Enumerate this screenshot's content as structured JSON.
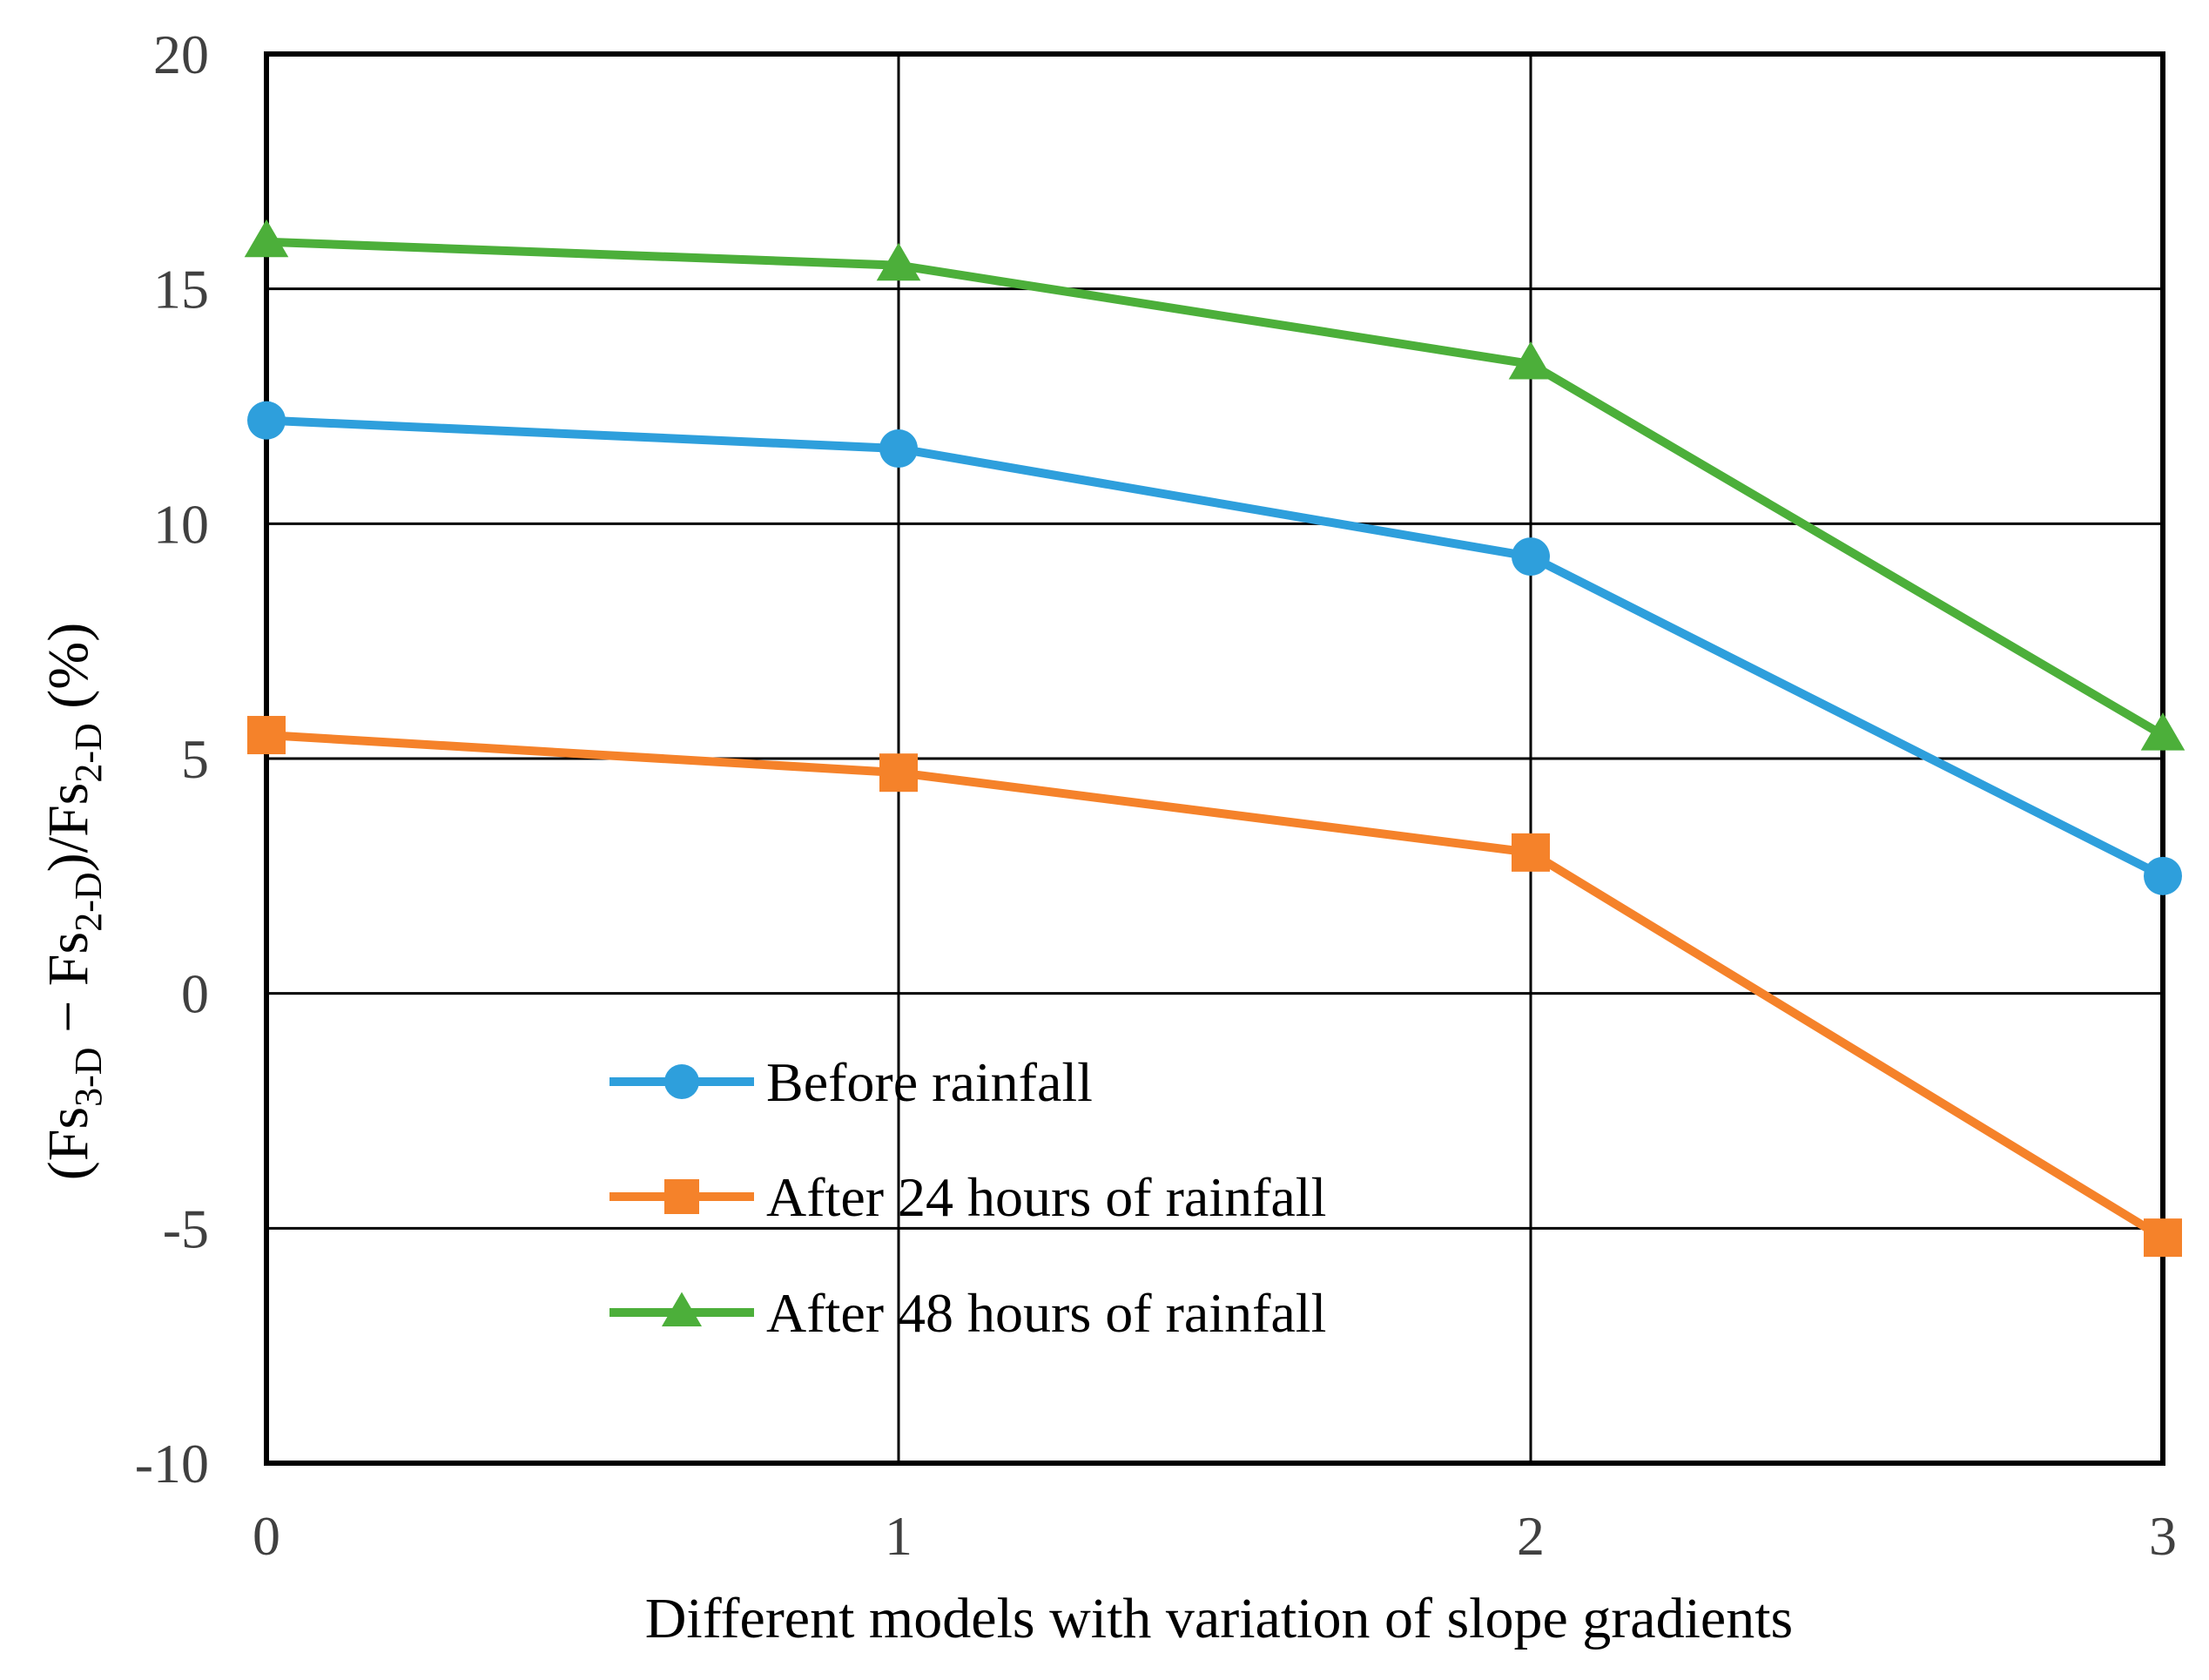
{
  "chart_data": {
    "type": "line",
    "title": "",
    "xlabel": "Different models with variation of slope gradients",
    "ylabel": {
      "main": "(Fs",
      "sub1": "3-D",
      "mid": " − Fs",
      "sub2": "2-D",
      "mid2": ")/Fs",
      "sub3": "2-D",
      "end": " (%)"
    },
    "x": [
      0,
      1,
      2,
      3
    ],
    "xlim": [
      0,
      3
    ],
    "ylim": [
      -10,
      20
    ],
    "xticks": [
      "0",
      "1",
      "2",
      "3"
    ],
    "yticks": [
      "-10",
      "-5",
      "0",
      "5",
      "10",
      "15",
      "20"
    ],
    "grid": true,
    "legend_position": "lower-left",
    "series": [
      {
        "name": "Before rainfall",
        "color": "#2e9fdc",
        "marker": "circle",
        "values": [
          12.2,
          11.6,
          9.3,
          2.5
        ]
      },
      {
        "name": "After 24 hours of rainfall",
        "color": "#f5822a",
        "marker": "square",
        "values": [
          5.5,
          4.7,
          3.0,
          -5.2
        ]
      },
      {
        "name": "After 48 hours of rainfall",
        "color": "#4caf3a",
        "marker": "triangle",
        "values": [
          16.0,
          15.5,
          13.4,
          5.5
        ]
      }
    ]
  }
}
